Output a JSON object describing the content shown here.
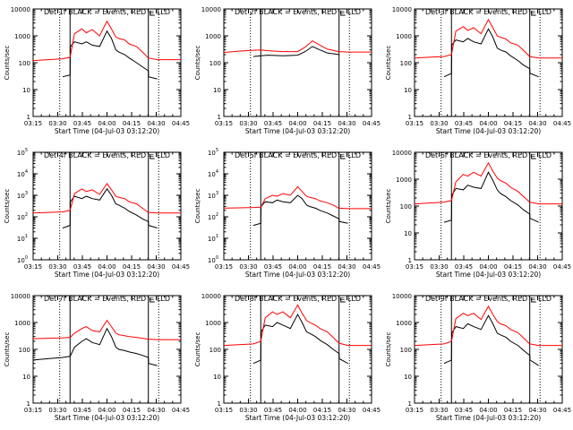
{
  "chart_data": [
    {
      "type": "line",
      "title": "Det 1f BLACK = Events, RED = LLD",
      "xlabel": "Start Time (04-Jul-03 03:12:20)",
      "ylabel": "Counts/sec",
      "x_ticks": [
        "03:15",
        "03:30",
        "03:45",
        "04:00",
        "04:15",
        "04:30",
        "04:45"
      ],
      "y_ticks": [
        "1",
        "10",
        "100",
        "1000",
        "10000"
      ],
      "ylim": [
        1,
        10000
      ],
      "xlim_minutes": [
        0,
        100
      ],
      "series": [
        {
          "name": "Events",
          "color": "#000000",
          "x": [
            20,
            25,
            25.2,
            28,
            33,
            36,
            40,
            45,
            50,
            53,
            56,
            58,
            62,
            65,
            70,
            74,
            78,
            78.2,
            84
          ],
          "y": [
            30,
            35,
            400,
            600,
            500,
            600,
            450,
            400,
            1500,
            800,
            300,
            250,
            200,
            150,
            100,
            70,
            50,
            30,
            25
          ]
        },
        {
          "name": "LLD",
          "color": "#ff0000",
          "x": [
            0,
            10,
            20,
            25,
            28,
            33,
            36,
            40,
            45,
            50,
            53,
            56,
            58,
            62,
            65,
            70,
            74,
            78,
            84,
            100
          ],
          "y": [
            120,
            130,
            140,
            160,
            1200,
            1800,
            1300,
            1700,
            1000,
            3500,
            1800,
            900,
            800,
            700,
            500,
            400,
            250,
            150,
            130,
            130
          ]
        }
      ]
    },
    {
      "type": "line",
      "title": "Det 2f BLACK = Events, RED = LLD",
      "xlabel": "Start Time (04-Jul-03 03:12:20)",
      "ylabel": "Counts/sec",
      "x_ticks": [
        "03:15",
        "03:30",
        "03:45",
        "04:00",
        "04:15",
        "04:30",
        "04:45"
      ],
      "y_ticks": [
        "1",
        "10",
        "100",
        "1000",
        "10000"
      ],
      "ylim": [
        1,
        10000
      ],
      "xlim_minutes": [
        0,
        100
      ],
      "series": [
        {
          "name": "Events",
          "color": "#000000",
          "x": [
            20,
            25,
            30,
            40,
            50,
            55,
            60,
            65,
            70,
            75,
            78
          ],
          "y": [
            170,
            180,
            190,
            180,
            190,
            260,
            400,
            300,
            230,
            210,
            200
          ]
        },
        {
          "name": "LLD",
          "color": "#ff0000",
          "x": [
            0,
            10,
            20,
            25,
            30,
            40,
            50,
            55,
            60,
            65,
            70,
            75,
            78,
            84,
            100
          ],
          "y": [
            240,
            270,
            290,
            300,
            280,
            260,
            260,
            380,
            650,
            450,
            320,
            280,
            260,
            250,
            250
          ]
        }
      ]
    },
    {
      "type": "line",
      "title": "Det 3f BLACK = Events, RED = LLD",
      "xlabel": "Start Time (04-Jul-03 03:12:20)",
      "ylabel": "Counts/sec",
      "x_ticks": [
        "03:15",
        "03:30",
        "03:45",
        "04:00",
        "04:15",
        "04:30",
        "04:45"
      ],
      "y_ticks": [
        "1",
        "10",
        "100",
        "1000",
        "10000"
      ],
      "ylim": [
        1,
        10000
      ],
      "xlim_minutes": [
        0,
        100
      ],
      "series": [
        {
          "name": "Events",
          "color": "#000000",
          "x": [
            20,
            25,
            25.2,
            28,
            33,
            36,
            40,
            45,
            50,
            53,
            56,
            58,
            62,
            65,
            70,
            74,
            78,
            78.2,
            84
          ],
          "y": [
            30,
            40,
            450,
            700,
            600,
            800,
            600,
            500,
            1800,
            900,
            350,
            300,
            250,
            180,
            120,
            80,
            60,
            40,
            30
          ]
        },
        {
          "name": "LLD",
          "color": "#ff0000",
          "x": [
            0,
            10,
            20,
            25,
            28,
            33,
            36,
            40,
            45,
            50,
            53,
            56,
            58,
            62,
            65,
            70,
            74,
            78,
            84,
            100
          ],
          "y": [
            150,
            160,
            170,
            200,
            1500,
            2200,
            1600,
            2000,
            1200,
            4000,
            2000,
            1000,
            900,
            750,
            550,
            450,
            280,
            170,
            150,
            150
          ]
        }
      ]
    },
    {
      "type": "line",
      "title": "Det 4f BLACK = Events, RED = LLD",
      "xlabel": "Start Time (04-Jul-03 03:12:20)",
      "ylabel": "Counts/sec",
      "x_ticks": [
        "03:15",
        "03:30",
        "03:45",
        "04:00",
        "04:15",
        "04:30",
        "04:45"
      ],
      "y_ticks": [
        "10^0",
        "10^1",
        "10^2",
        "10^3",
        "10^4",
        "10^5"
      ],
      "ylim": [
        1,
        100000
      ],
      "xlim_minutes": [
        0,
        100
      ],
      "series": [
        {
          "name": "Events",
          "color": "#000000",
          "x": [
            20,
            25,
            25.2,
            28,
            33,
            36,
            40,
            45,
            50,
            53,
            56,
            58,
            62,
            65,
            70,
            74,
            78,
            78.2,
            84
          ],
          "y": [
            30,
            40,
            500,
            900,
            700,
            900,
            700,
            600,
            2000,
            1000,
            400,
            350,
            250,
            180,
            120,
            80,
            60,
            40,
            30
          ]
        },
        {
          "name": "LLD",
          "color": "#ff0000",
          "x": [
            0,
            10,
            20,
            25,
            28,
            33,
            36,
            40,
            45,
            50,
            53,
            56,
            58,
            62,
            65,
            70,
            74,
            78,
            84,
            100
          ],
          "y": [
            150,
            160,
            170,
            200,
            1200,
            2000,
            1500,
            1800,
            1100,
            3500,
            1800,
            900,
            800,
            700,
            500,
            400,
            250,
            160,
            150,
            150
          ]
        }
      ]
    },
    {
      "type": "line",
      "title": "Det 5f BLACK = Events, RED = LLD",
      "xlabel": "Start Time (04-Jul-03 03:12:20)",
      "ylabel": "Counts/sec",
      "x_ticks": [
        "03:15",
        "03:30",
        "03:45",
        "04:00",
        "04:15",
        "04:30",
        "04:45"
      ],
      "y_ticks": [
        "10^0",
        "10^1",
        "10^2",
        "10^3",
        "10^4",
        "10^5"
      ],
      "ylim": [
        1,
        100000
      ],
      "xlim_minutes": [
        0,
        100
      ],
      "series": [
        {
          "name": "Events",
          "color": "#000000",
          "x": [
            20,
            25,
            25.2,
            28,
            33,
            36,
            40,
            45,
            50,
            53,
            56,
            58,
            62,
            65,
            70,
            74,
            78,
            78.2,
            84
          ],
          "y": [
            40,
            50,
            300,
            500,
            450,
            600,
            500,
            450,
            1000,
            700,
            350,
            300,
            250,
            200,
            150,
            110,
            80,
            60,
            50
          ]
        },
        {
          "name": "LLD",
          "color": "#ff0000",
          "x": [
            0,
            10,
            20,
            25,
            28,
            33,
            36,
            40,
            45,
            50,
            53,
            56,
            58,
            62,
            65,
            70,
            74,
            78,
            84,
            100
          ],
          "y": [
            250,
            260,
            270,
            280,
            700,
            1000,
            900,
            1200,
            1000,
            2500,
            1500,
            900,
            800,
            700,
            550,
            450,
            350,
            250,
            240,
            240
          ]
        }
      ]
    },
    {
      "type": "line",
      "title": "Det 6f BLACK = Events, RED = LLD",
      "xlabel": "Start Time (04-Jul-03 03:12:20)",
      "ylabel": "Counts/sec",
      "x_ticks": [
        "03:15",
        "03:30",
        "03:45",
        "04:00",
        "04:15",
        "04:30",
        "04:45"
      ],
      "y_ticks": [
        "1",
        "10",
        "100",
        "1000",
        "10000"
      ],
      "ylim": [
        1,
        10000
      ],
      "xlim_minutes": [
        0,
        100
      ],
      "series": [
        {
          "name": "Events",
          "color": "#000000",
          "x": [
            20,
            25,
            25.2,
            28,
            33,
            36,
            40,
            45,
            50,
            53,
            56,
            58,
            62,
            65,
            70,
            74,
            78,
            78.2,
            84
          ],
          "y": [
            25,
            30,
            250,
            450,
            400,
            600,
            500,
            450,
            1800,
            900,
            400,
            300,
            220,
            160,
            110,
            70,
            50,
            35,
            25
          ]
        },
        {
          "name": "LLD",
          "color": "#ff0000",
          "x": [
            0,
            10,
            20,
            25,
            28,
            33,
            36,
            40,
            45,
            50,
            53,
            56,
            58,
            62,
            65,
            70,
            74,
            78,
            84,
            100
          ],
          "y": [
            120,
            130,
            140,
            160,
            800,
            1500,
            1300,
            1800,
            1300,
            4000,
            2000,
            1100,
            900,
            700,
            500,
            350,
            220,
            140,
            120,
            120
          ]
        }
      ]
    },
    {
      "type": "line",
      "title": "Det 7f BLACK = Events, RED = LLD",
      "xlabel": "Start Time (04-Jul-03 03:12:20)",
      "ylabel": "Counts/sec",
      "x_ticks": [
        "03:15",
        "03:30",
        "03:45",
        "04:00",
        "04:15",
        "04:30",
        "04:45"
      ],
      "y_ticks": [
        "1",
        "10",
        "100",
        "1000",
        "10000"
      ],
      "ylim": [
        1,
        10000
      ],
      "xlim_minutes": [
        0,
        100
      ],
      "series": [
        {
          "name": "Events",
          "color": "#000000",
          "x": [
            0,
            10,
            20,
            25,
            28,
            33,
            36,
            40,
            45,
            50,
            53,
            56,
            58,
            62,
            65,
            70,
            74,
            78,
            78.2,
            84
          ],
          "y": [
            40,
            45,
            50,
            55,
            120,
            200,
            250,
            180,
            150,
            600,
            300,
            120,
            100,
            90,
            80,
            70,
            60,
            50,
            30,
            25
          ]
        },
        {
          "name": "LLD",
          "color": "#ff0000",
          "x": [
            0,
            10,
            20,
            25,
            28,
            33,
            36,
            40,
            45,
            50,
            53,
            56,
            58,
            62,
            65,
            70,
            74,
            78,
            84,
            100
          ],
          "y": [
            250,
            260,
            270,
            280,
            400,
            600,
            700,
            500,
            450,
            1200,
            700,
            400,
            350,
            320,
            300,
            280,
            260,
            240,
            230,
            230
          ]
        }
      ]
    },
    {
      "type": "line",
      "title": "Det 8f BLACK = Events, RED = LLD",
      "xlabel": "Start Time (04-Jul-03 03:12:20)",
      "ylabel": "Counts/sec",
      "x_ticks": [
        "03:15",
        "03:30",
        "03:45",
        "04:00",
        "04:15",
        "04:30",
        "04:45"
      ],
      "y_ticks": [
        "1",
        "10",
        "100",
        "1000",
        "10000"
      ],
      "ylim": [
        1,
        10000
      ],
      "xlim_minutes": [
        0,
        100
      ],
      "series": [
        {
          "name": "Events",
          "color": "#000000",
          "x": [
            20,
            25,
            25.2,
            28,
            33,
            36,
            40,
            45,
            50,
            53,
            56,
            58,
            62,
            65,
            70,
            74,
            78,
            78.2,
            84
          ],
          "y": [
            30,
            40,
            450,
            800,
            700,
            1000,
            800,
            600,
            2000,
            1000,
            450,
            400,
            300,
            220,
            150,
            100,
            70,
            45,
            30
          ]
        },
        {
          "name": "LLD",
          "color": "#ff0000",
          "x": [
            0,
            10,
            20,
            25,
            28,
            33,
            36,
            40,
            45,
            50,
            53,
            56,
            58,
            62,
            65,
            70,
            74,
            78,
            84,
            100
          ],
          "y": [
            140,
            150,
            160,
            200,
            1500,
            2500,
            2000,
            2500,
            1500,
            4500,
            2200,
            1200,
            1000,
            800,
            600,
            450,
            280,
            170,
            140,
            140
          ]
        }
      ]
    },
    {
      "type": "line",
      "title": "Det 9f BLACK = Events, RED = LLD",
      "xlabel": "Start Time (04-Jul-03 03:12:20)",
      "ylabel": "Counts/sec",
      "x_ticks": [
        "03:15",
        "03:30",
        "03:45",
        "04:00",
        "04:15",
        "04:30",
        "04:45"
      ],
      "y_ticks": [
        "1",
        "10",
        "100",
        "1000",
        "10000"
      ],
      "ylim": [
        1,
        10000
      ],
      "xlim_minutes": [
        0,
        100
      ],
      "series": [
        {
          "name": "Events",
          "color": "#000000",
          "x": [
            20,
            25,
            25.2,
            28,
            33,
            36,
            40,
            45,
            50,
            53,
            56,
            58,
            62,
            65,
            70,
            74,
            78,
            78.2,
            84
          ],
          "y": [
            30,
            40,
            400,
            700,
            600,
            900,
            700,
            550,
            1800,
            900,
            400,
            350,
            280,
            200,
            140,
            90,
            60,
            40,
            25
          ]
        },
        {
          "name": "LLD",
          "color": "#ff0000",
          "x": [
            0,
            10,
            20,
            25,
            28,
            33,
            36,
            40,
            45,
            50,
            53,
            56,
            58,
            62,
            65,
            70,
            74,
            78,
            84,
            100
          ],
          "y": [
            140,
            150,
            160,
            200,
            1400,
            2200,
            1800,
            2200,
            1300,
            4000,
            2000,
            1100,
            900,
            750,
            550,
            420,
            260,
            160,
            140,
            140
          ]
        }
      ]
    }
  ]
}
